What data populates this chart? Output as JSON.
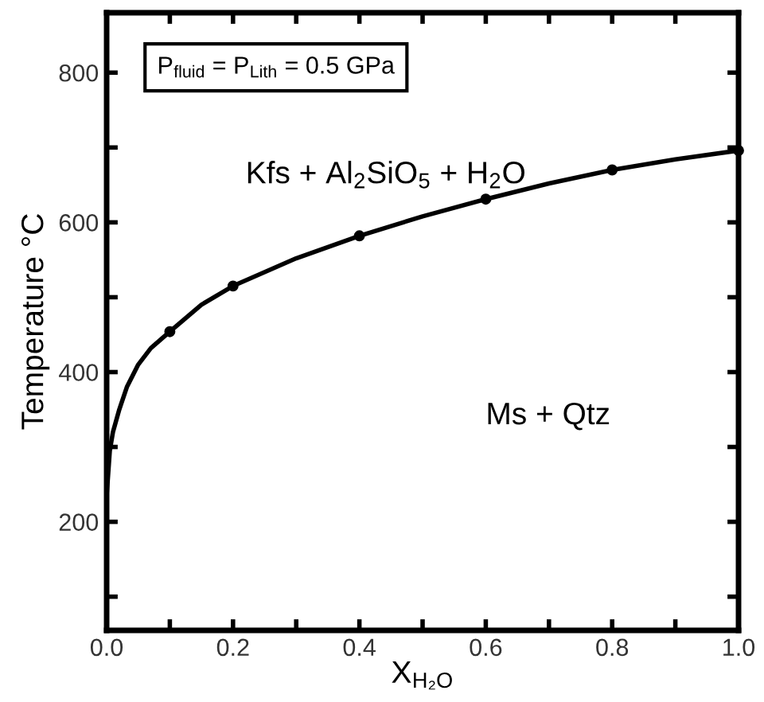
{
  "chart_data": {
    "type": "line",
    "xlabel": "X$_{H₂O}$",
    "ylabel": "Temperature °C",
    "series": [
      {
        "color": "#000000",
        "marker": "none",
        "x": [
          0,
          0.005,
          0.01,
          0.02,
          0.032,
          0.05,
          0.07,
          0.1,
          0.15,
          0.2,
          0.3,
          0.4,
          0.5,
          0.6,
          0.7,
          0.8,
          0.9,
          1.0
        ],
        "values": [
          235,
          295,
          320,
          350,
          380,
          410,
          432,
          454,
          490,
          515,
          552,
          582,
          608,
          631,
          652,
          670,
          684,
          696
        ]
      },
      {
        "type": "scatter",
        "color": "#000000",
        "marker": "circle",
        "x": [
          0.1,
          0.2,
          0.4,
          0.6,
          0.8,
          1.0
        ],
        "values": [
          454,
          515,
          582,
          631,
          670,
          696
        ]
      }
    ],
    "annotations": [
      "P$_{fluid}$ = P$_{Lith}$ = 0.5 GPa",
      "Kfs + Al$_{2}$SiO$_{5}$ + H$_{2}$O",
      "Ms + Qtz"
    ],
    "xlim": [
      0,
      1.0
    ],
    "ylim": [
      55,
      880
    ],
    "xticks": [
      {
        "value": 0,
        "label": "0.0"
      },
      {
        "value": 0.1,
        "label": null
      },
      0.2,
      {
        "value": 0.3,
        "label": null
      },
      0.4,
      {
        "value": 0.5,
        "label": null
      },
      0.6,
      {
        "value": 0.7,
        "label": null
      },
      0.8,
      {
        "value": 0.9,
        "label": null
      },
      {
        "value": 1.0,
        "label": "1.0"
      }
    ],
    "yticks": [
      {
        "value": 100,
        "label": null
      },
      200,
      {
        "value": 300,
        "label": null
      },
      400,
      {
        "value": 500,
        "label": null
      },
      600,
      {
        "value": 700,
        "label": null
      },
      800
    ],
    "grid": false,
    "legend": false
  }
}
